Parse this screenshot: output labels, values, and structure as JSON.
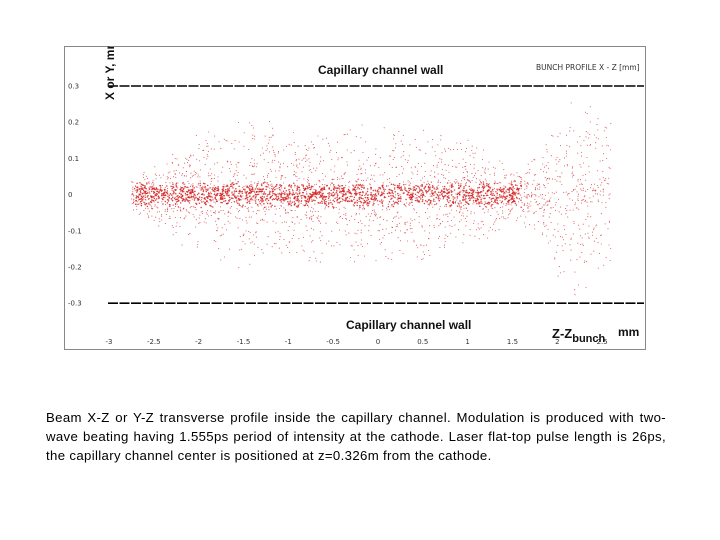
{
  "chart_data": {
    "type": "scatter",
    "ylabel": "X or Y, mm",
    "inset_label": "BUNCH PROFILE X - Z [mm]",
    "annotations": {
      "top_wall": "Capillary channel wall",
      "bottom_wall": "Capillary channel wall",
      "x_axis_label_main": "Z-Z",
      "x_axis_label_sub": "bunch",
      "x_axis_label_unit": "mm"
    },
    "xlim": [
      -3.1,
      2.9
    ],
    "ylim": [
      -0.33,
      0.3
    ],
    "x_ticks": [
      "-3",
      "-2.5",
      "-2",
      "-1.5",
      "-1",
      "-0.5",
      "0",
      "0.5",
      "1",
      "1.5",
      "2",
      "2.5"
    ],
    "x_tick_values": [
      -3,
      -2.5,
      -2,
      -1.5,
      -1,
      -0.5,
      0,
      0.5,
      1,
      1.5,
      2,
      2.5
    ],
    "y_ticks": [
      "0.3",
      "0.2",
      "0.1",
      "0",
      "-0.1",
      "-0.2",
      "-0.3"
    ],
    "y_tick_values": [
      0.3,
      0.2,
      0.1,
      0,
      -0.1,
      -0.2,
      -0.3
    ],
    "wall_y": [
      0.3,
      -0.3
    ],
    "envelope": {
      "x": [
        -2.75,
        -2.5,
        -2.0,
        -1.5,
        -1.0,
        -0.5,
        0.0,
        0.5,
        1.0,
        1.3,
        1.5,
        1.8,
        2.0,
        2.2,
        2.4,
        2.6
      ],
      "half_width": [
        0.05,
        0.09,
        0.18,
        0.22,
        0.21,
        0.2,
        0.2,
        0.19,
        0.17,
        0.12,
        0.08,
        0.12,
        0.24,
        0.29,
        0.28,
        0.25
      ]
    },
    "core_half_width": 0.02,
    "point_color": "#d42020",
    "wall_color": "#000000"
  },
  "caption": "Beam X-Z or Y-Z transverse profile inside the capillary channel. Modulation is produced with two-wave beating having 1.555ps period of intensity at the cathode. Laser flat-top pulse length is 26ps, the capillary channel center is positioned at z=0.326m from the cathode."
}
